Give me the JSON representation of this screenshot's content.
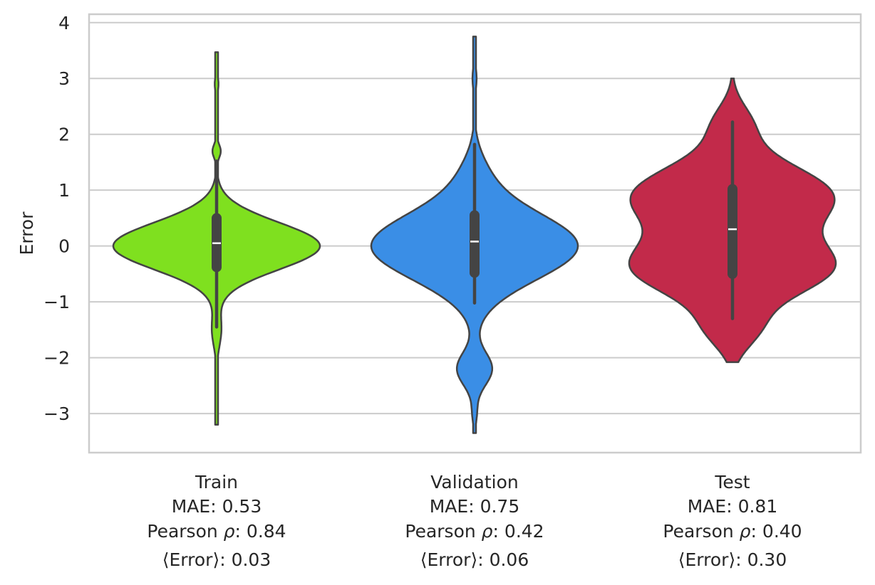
{
  "chart_data": {
    "type": "violin",
    "ylabel": "Error",
    "ylim": [
      -3.7,
      4.15
    ],
    "yticks": [
      4,
      3,
      2,
      1,
      0,
      -1,
      -2,
      -3
    ],
    "ytick_labels": [
      "4",
      "3",
      "2",
      "1",
      "0",
      "−1",
      "−2",
      "−3"
    ],
    "grid": "horizontal",
    "categories": [
      {
        "name": "Train",
        "stats_lines": [
          "MAE: 0.53",
          "Pearson ",
          ": 0.84",
          "⟨Error⟩: 0.03"
        ],
        "color": "#7fe01f",
        "median": 0.05,
        "q1": -0.38,
        "q3": 0.5,
        "whisker_low": -1.45,
        "whisker_high": 1.52,
        "min": -3.2,
        "max": 3.47
      },
      {
        "name": "Validation",
        "stats_lines": [
          "MAE: 0.75",
          "Pearson ",
          ": 0.42",
          "⟨Error⟩: 0.06"
        ],
        "color": "#3a8ee6",
        "median": 0.08,
        "q1": -0.48,
        "q3": 0.55,
        "whisker_low": -1.02,
        "whisker_high": 1.82,
        "min": -3.35,
        "max": 3.75
      },
      {
        "name": "Test",
        "stats_lines": [
          "MAE: 0.81",
          "Pearson ",
          ": 0.40",
          "⟨Error⟩: 0.30"
        ],
        "color": "#c22a4a",
        "median": 0.3,
        "q1": -0.5,
        "q3": 1.02,
        "whisker_low": -1.3,
        "whisker_high": 2.22,
        "min": -2.08,
        "max": 3.0
      }
    ],
    "rho_symbol": "ρ"
  }
}
